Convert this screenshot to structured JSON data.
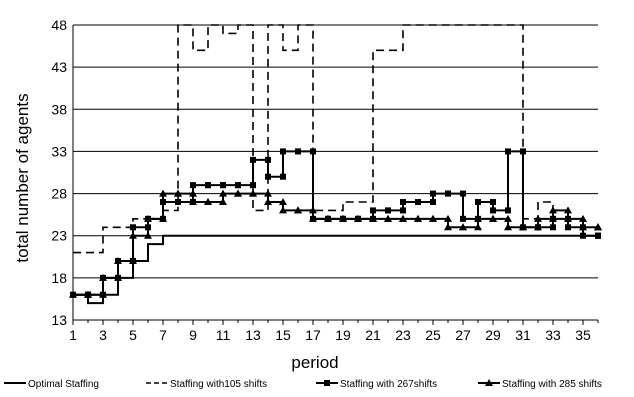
{
  "chart_data": {
    "type": "line",
    "xlabel": "period",
    "ylabel": "total number of agents",
    "xlim": [
      1,
      36
    ],
    "ylim": [
      13,
      48
    ],
    "x_ticks": [
      "1",
      "3",
      "5",
      "7",
      "9",
      "11",
      "13",
      "15",
      "17",
      "19",
      "21",
      "23",
      "25",
      "27",
      "29",
      "31",
      "33",
      "35"
    ],
    "y_ticks": [
      "13",
      "18",
      "23",
      "28",
      "33",
      "38",
      "43",
      "48"
    ],
    "grid": "horizontal",
    "legend_position": "bottom",
    "series": [
      {
        "name": "Optimal Staffing",
        "style": "solid",
        "marker": "none",
        "step_x": [
          1,
          2,
          3,
          4,
          5,
          6,
          7,
          8,
          9,
          10,
          11,
          12,
          13,
          14,
          15,
          16,
          17,
          18,
          19,
          20,
          21,
          22,
          23,
          24,
          25,
          26,
          27,
          28,
          29,
          30,
          31,
          32,
          33,
          34,
          35,
          36
        ],
        "values": [
          16,
          15,
          16,
          18,
          20,
          22,
          23,
          23,
          23,
          23,
          23,
          23,
          23,
          23,
          23,
          23,
          23,
          23,
          23,
          23,
          23,
          23,
          23,
          23,
          23,
          23,
          23,
          23,
          23,
          23,
          23,
          23,
          23,
          23,
          23,
          23
        ]
      },
      {
        "name": "Staffing with105 shifts",
        "style": "dashed",
        "marker": "none",
        "step_x": [
          1,
          2,
          3,
          4,
          5,
          6,
          7,
          8,
          9,
          10,
          11,
          12,
          13,
          14,
          15,
          16,
          17,
          18,
          19,
          20,
          21,
          22,
          23,
          24,
          25,
          26,
          27,
          28,
          29,
          30,
          31,
          32,
          33,
          34,
          35,
          36
        ],
        "values": [
          21,
          21,
          24,
          24,
          25,
          25,
          26,
          48,
          45,
          48,
          47,
          48,
          26,
          48,
          45,
          48,
          26,
          26,
          27,
          27,
          45,
          45,
          48,
          48,
          48,
          48,
          48,
          48,
          48,
          48,
          25,
          27,
          26,
          25,
          24,
          24
        ]
      },
      {
        "name": "Staffing with 267shifts",
        "style": "solid",
        "marker": "square",
        "step_x": [
          1,
          2,
          3,
          4,
          5,
          6,
          7,
          8,
          9,
          10,
          11,
          12,
          13,
          14,
          15,
          16,
          17,
          18,
          19,
          20,
          21,
          22,
          23,
          24,
          25,
          26,
          27,
          28,
          29,
          30,
          31,
          32,
          33,
          34,
          35,
          36
        ],
        "values": [
          16,
          16,
          18,
          20,
          24,
          25,
          27,
          27,
          29,
          29,
          29,
          29,
          32,
          30,
          33,
          33,
          25,
          25,
          25,
          25,
          26,
          26,
          27,
          27,
          28,
          28,
          25,
          27,
          26,
          33,
          24,
          24,
          25,
          24,
          23,
          23
        ]
      },
      {
        "name": "Staffing with 285 shifts",
        "style": "solid",
        "marker": "triangle",
        "step_x": [
          1,
          2,
          3,
          4,
          5,
          6,
          7,
          8,
          9,
          10,
          11,
          12,
          13,
          14,
          15,
          16,
          17,
          18,
          19,
          20,
          21,
          22,
          23,
          24,
          25,
          26,
          27,
          28,
          29,
          30,
          31,
          32,
          33,
          34,
          35,
          36
        ],
        "values": [
          16,
          16,
          18,
          20,
          23,
          25,
          28,
          28,
          27,
          27,
          28,
          28,
          28,
          27,
          26,
          26,
          25,
          25,
          25,
          25,
          25,
          25,
          25,
          25,
          25,
          24,
          24,
          25,
          25,
          24,
          24,
          25,
          26,
          25,
          24,
          24
        ]
      }
    ],
    "legend": [
      "Optimal Staffing",
      "Staffing with105 shifts",
      "Staffing with 267shifts",
      "Staffing with 285 shifts"
    ]
  }
}
